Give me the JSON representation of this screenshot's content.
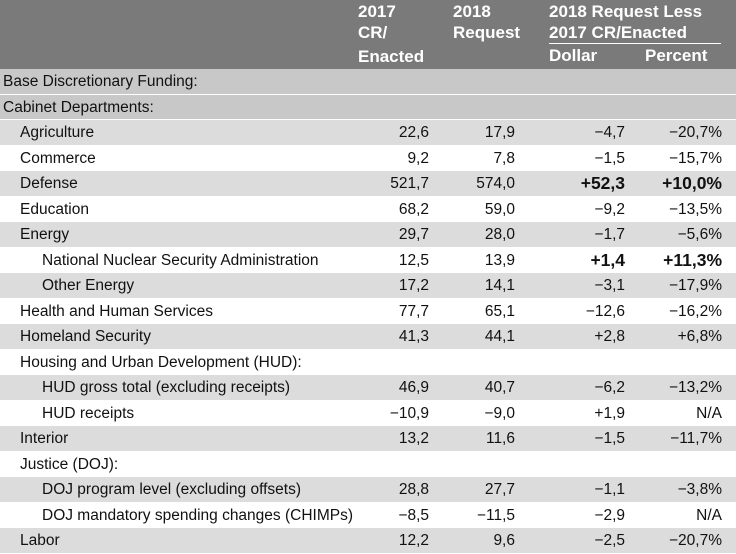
{
  "header": {
    "col_2017": [
      "2017",
      "CR/",
      "Enacted"
    ],
    "col_2018": [
      "2018",
      "Request"
    ],
    "col_diff": [
      "2018 Request Less",
      "2017 CR/Enacted"
    ],
    "col_dollar": "Dollar",
    "col_percent": "Percent"
  },
  "rows": [
    {
      "label": "Base Discretionary Funding:",
      "level": 0,
      "style": "band",
      "v2017": "",
      "v2018": "",
      "dollar": "",
      "percent": ""
    },
    {
      "label": "Cabinet Departments:",
      "level": 0,
      "style": "band",
      "v2017": "",
      "v2018": "",
      "dollar": "",
      "percent": ""
    },
    {
      "label": "Agriculture",
      "level": 1,
      "style": "shade",
      "v2017": "22,6",
      "v2018": "17,9",
      "dollar": "−4,7",
      "percent": "−20,7%"
    },
    {
      "label": "Commerce",
      "level": 1,
      "style": "white",
      "v2017": "9,2",
      "v2018": "7,8",
      "dollar": "−1,5",
      "percent": "−15,7%"
    },
    {
      "label": "Defense",
      "level": 1,
      "style": "shade",
      "v2017": "521,7",
      "v2018": "574,0",
      "dollar": "+52,3",
      "percent": "+10,0%",
      "bold": true
    },
    {
      "label": "Education",
      "level": 1,
      "style": "white",
      "v2017": "68,2",
      "v2018": "59,0",
      "dollar": "−9,2",
      "percent": "−13,5%"
    },
    {
      "label": "Energy",
      "level": 1,
      "style": "shade",
      "v2017": "29,7",
      "v2018": "28,0",
      "dollar": "−1,7",
      "percent": "−5,6%"
    },
    {
      "label": "National Nuclear Security Administration",
      "level": 2,
      "style": "white",
      "v2017": "12,5",
      "v2018": "13,9",
      "dollar": "+1,4",
      "percent": "+11,3%",
      "bold": true
    },
    {
      "label": "Other Energy",
      "level": 2,
      "style": "shade",
      "v2017": "17,2",
      "v2018": "14,1",
      "dollar": "−3,1",
      "percent": "−17,9%"
    },
    {
      "label": "Health and Human Services",
      "level": 1,
      "style": "white",
      "v2017": "77,7",
      "v2018": "65,1",
      "dollar": "−12,6",
      "percent": "−16,2%"
    },
    {
      "label": "Homeland Security",
      "level": 1,
      "style": "shade",
      "v2017": "41,3",
      "v2018": "44,1",
      "dollar": "+2,8",
      "percent": "+6,8%"
    },
    {
      "label": "Housing and Urban Development (HUD):",
      "level": 1,
      "style": "white",
      "v2017": "",
      "v2018": "",
      "dollar": "",
      "percent": ""
    },
    {
      "label": "HUD gross total (excluding receipts)",
      "level": 2,
      "style": "shade",
      "v2017": "46,9",
      "v2018": "40,7",
      "dollar": "−6,2",
      "percent": "−13,2%"
    },
    {
      "label": "HUD receipts",
      "level": 2,
      "style": "white",
      "v2017": "−10,9",
      "v2018": "−9,0",
      "dollar": "+1,9",
      "percent": "N/A"
    },
    {
      "label": "Interior",
      "level": 1,
      "style": "shade",
      "v2017": "13,2",
      "v2018": "11,6",
      "dollar": "−1,5",
      "percent": "−11,7%"
    },
    {
      "label": "Justice (DOJ):",
      "level": 1,
      "style": "white",
      "v2017": "",
      "v2018": "",
      "dollar": "",
      "percent": ""
    },
    {
      "label": "DOJ program level (excluding offsets)",
      "level": 2,
      "style": "shade",
      "v2017": "28,8",
      "v2018": "27,7",
      "dollar": "−1,1",
      "percent": "−3,8%"
    },
    {
      "label": "DOJ mandatory spending changes (CHIMPs)",
      "level": 2,
      "style": "white",
      "v2017": "−8,5",
      "v2018": "−11,5",
      "dollar": "−2,9",
      "percent": "N/A"
    },
    {
      "label": "Labor",
      "level": 1,
      "style": "shade",
      "v2017": "12,2",
      "v2018": "9,6",
      "dollar": "−2,5",
      "percent": "−20,7%"
    }
  ]
}
